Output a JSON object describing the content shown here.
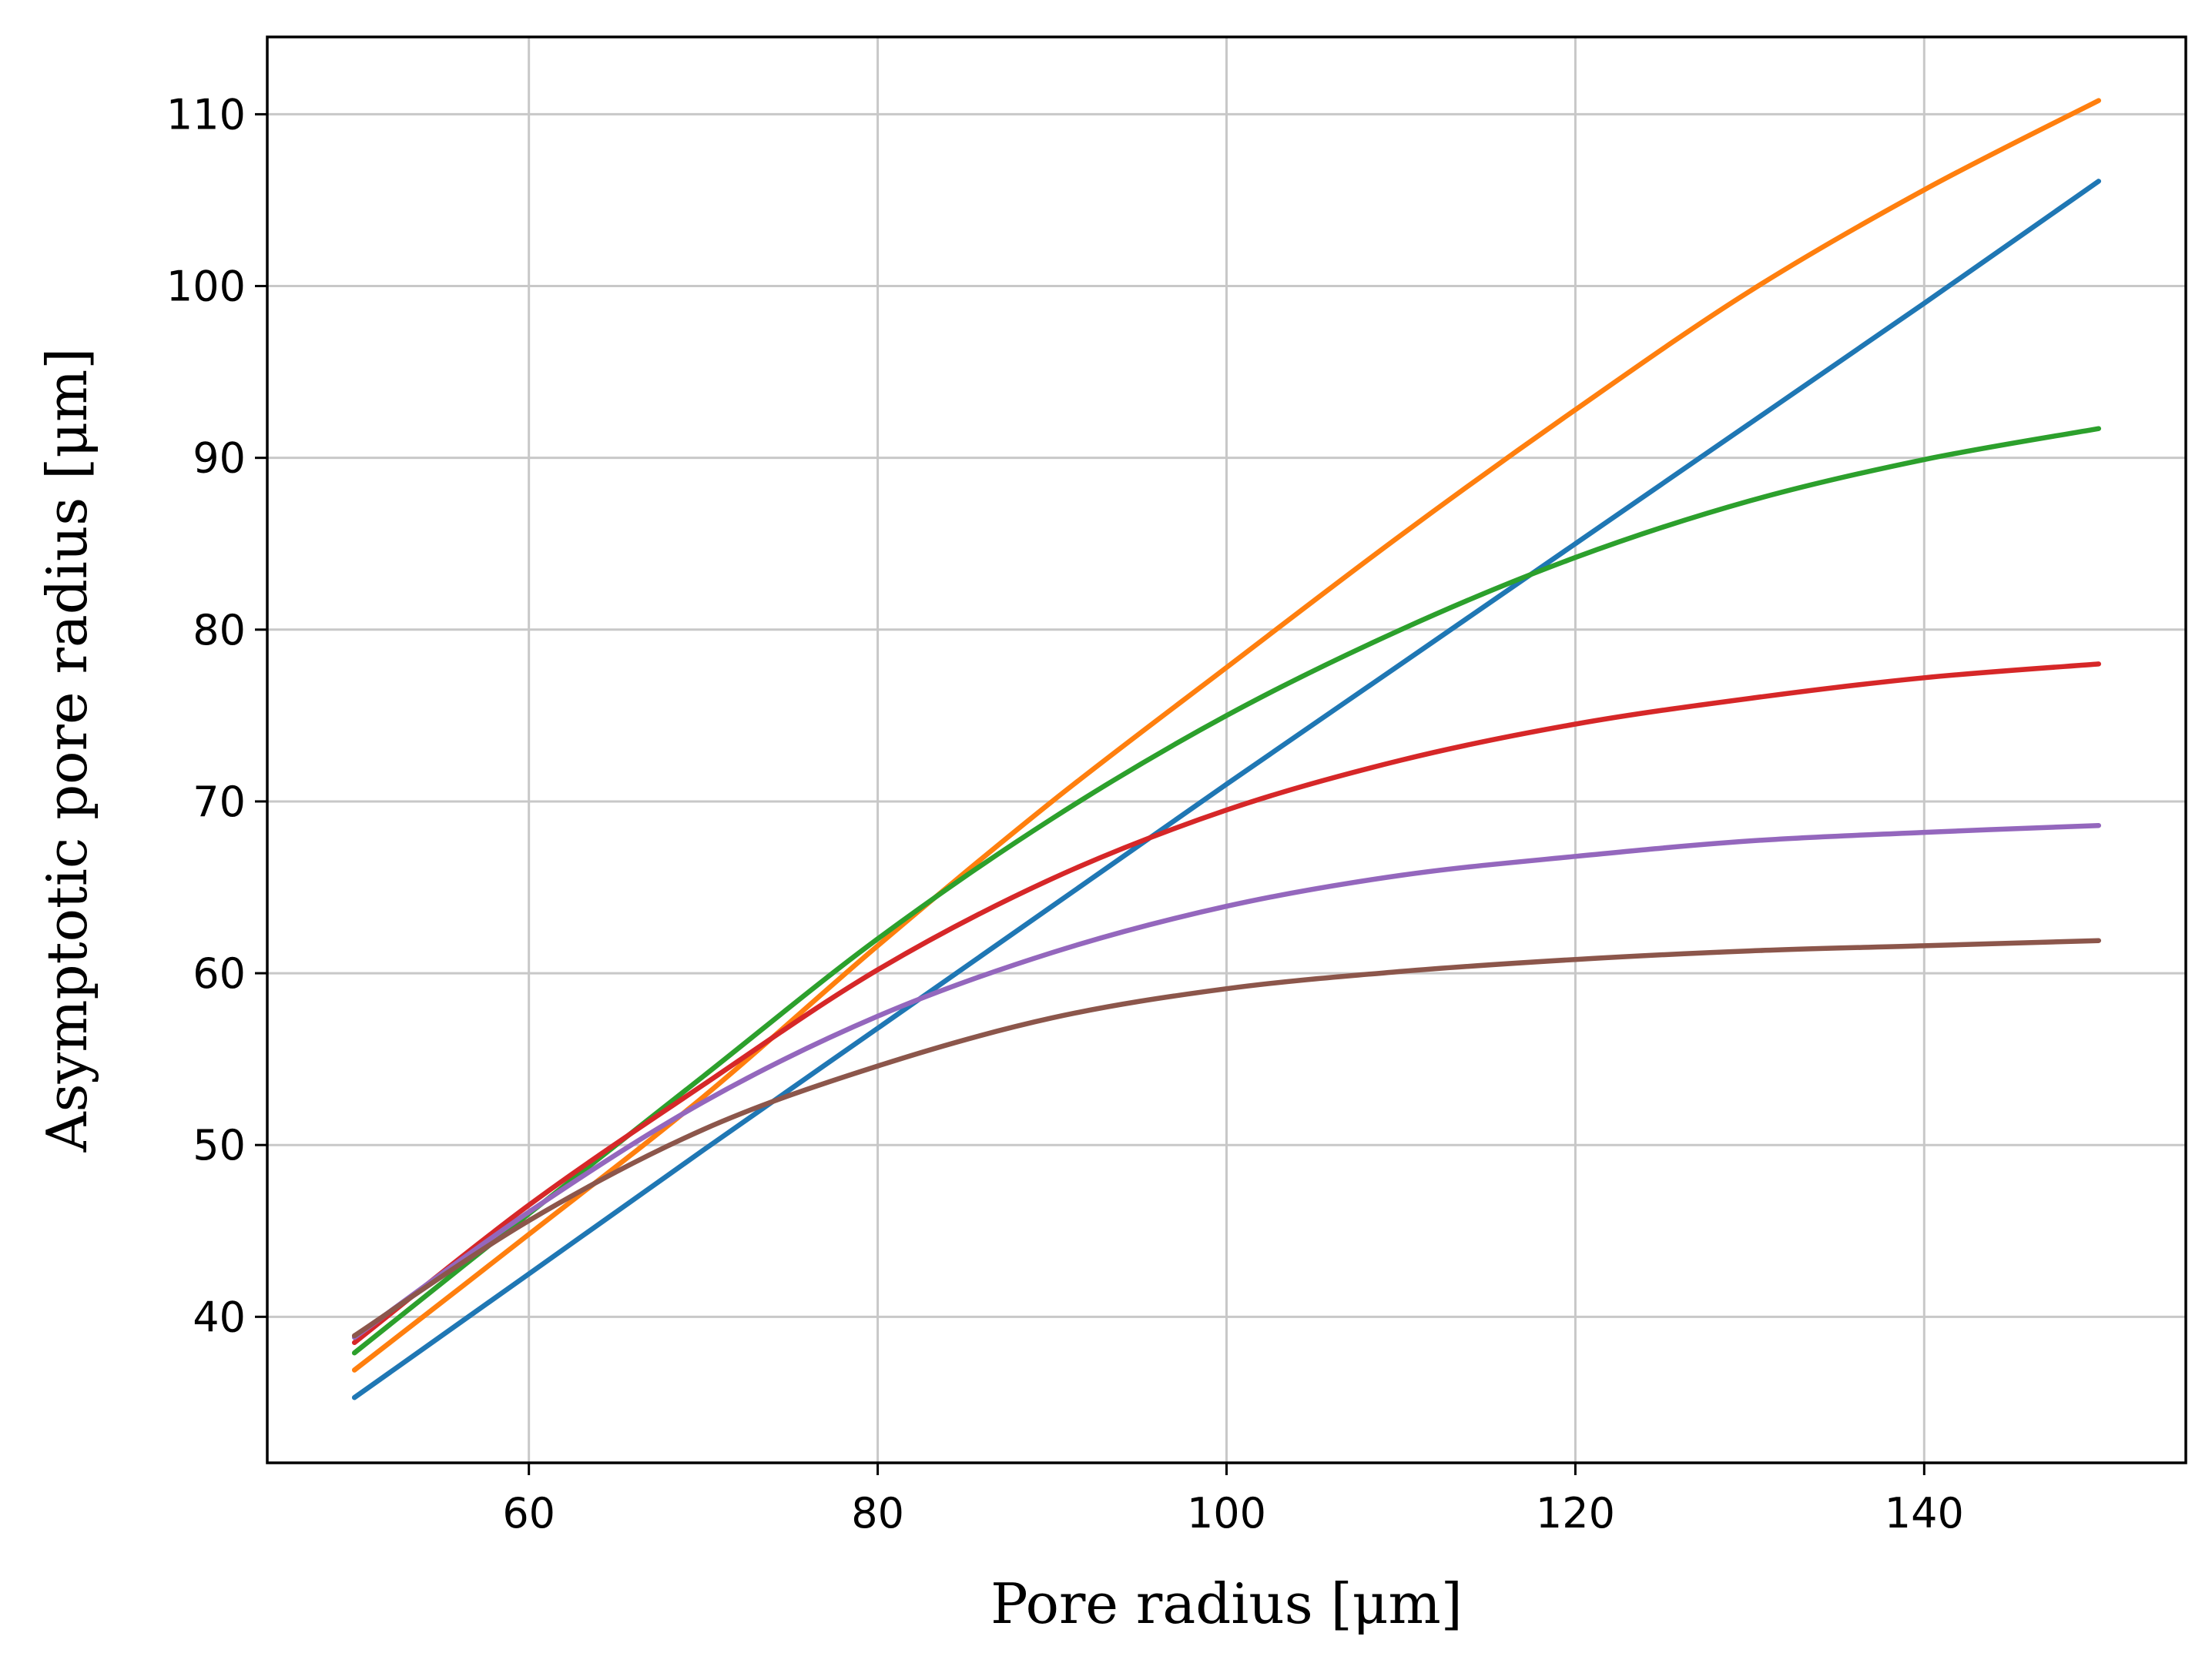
{
  "chart_data": {
    "type": "line",
    "title": "",
    "xlabel": "Pore radius [μm]",
    "ylabel": "Asymptotic pore radius  [μm]",
    "xlim": [
      45,
      155
    ],
    "ylim": [
      31.5,
      114.5
    ],
    "xticks": [
      60,
      80,
      100,
      120,
      140
    ],
    "yticks": [
      40,
      50,
      60,
      70,
      80,
      90,
      100,
      110
    ],
    "grid": true,
    "legend": "none",
    "x": [
      50,
      60,
      70,
      80,
      90,
      100,
      110,
      120,
      130,
      140,
      150
    ],
    "series": [
      {
        "name": "blue",
        "color": "#1f77b4",
        "values": [
          35.3,
          42.5,
          49.7,
          56.8,
          63.9,
          71.0,
          78.0,
          85.0,
          92.0,
          99.0,
          106.1
        ]
      },
      {
        "name": "orange",
        "color": "#ff7f0e",
        "values": [
          36.9,
          44.8,
          52.8,
          61.6,
          70.0,
          77.8,
          85.5,
          92.8,
          99.7,
          105.6,
          110.8
        ]
      },
      {
        "name": "green",
        "color": "#2ca02c",
        "values": [
          37.9,
          46.0,
          54.0,
          62.0,
          69.0,
          75.0,
          80.0,
          84.2,
          87.5,
          89.9,
          91.7
        ]
      },
      {
        "name": "red",
        "color": "#d62728",
        "values": [
          38.5,
          46.5,
          53.5,
          60.2,
          65.5,
          69.5,
          72.4,
          74.5,
          76.0,
          77.2,
          78.0
        ]
      },
      {
        "name": "purple",
        "color": "#9467bd",
        "values": [
          38.8,
          46.1,
          52.5,
          57.5,
          61.2,
          63.9,
          65.7,
          66.8,
          67.7,
          68.2,
          68.6
        ]
      },
      {
        "name": "brown",
        "color": "#8c564b",
        "values": [
          38.9,
          45.6,
          50.9,
          54.6,
          57.4,
          59.1,
          60.1,
          60.8,
          61.3,
          61.6,
          61.9
        ]
      }
    ]
  }
}
